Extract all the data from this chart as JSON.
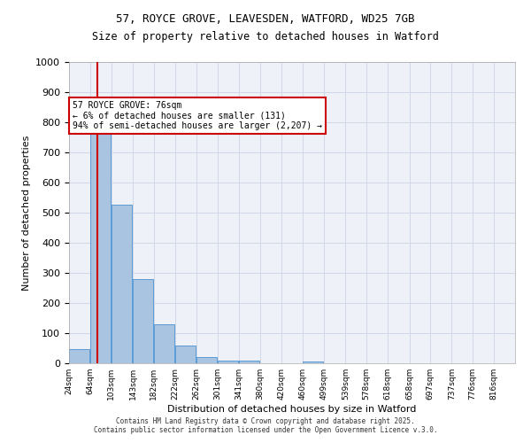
{
  "title_line1": "57, ROYCE GROVE, LEAVESDEN, WATFORD, WD25 7GB",
  "title_line2": "Size of property relative to detached houses in Watford",
  "xlabel": "Distribution of detached houses by size in Watford",
  "ylabel": "Number of detached properties",
  "bar_values": [
    46,
    812,
    525,
    278,
    128,
    60,
    22,
    10,
    10,
    0,
    0,
    7,
    0,
    0,
    0,
    0,
    0,
    0,
    0,
    0
  ],
  "bar_labels": [
    "24sqm",
    "64sqm",
    "103sqm",
    "143sqm",
    "182sqm",
    "222sqm",
    "262sqm",
    "301sqm",
    "341sqm",
    "380sqm",
    "420sqm",
    "460sqm",
    "499sqm",
    "539sqm",
    "578sqm",
    "618sqm",
    "658sqm",
    "697sqm",
    "737sqm",
    "776sqm",
    "816sqm"
  ],
  "bar_color": "#a8c4e0",
  "bar_edge_color": "#5b9bd5",
  "grid_color": "#d0d8e8",
  "background_color": "#eef2f8",
  "property_line_x": 76,
  "property_line_color": "#cc0000",
  "annotation_text": "57 ROYCE GROVE: 76sqm\n← 6% of detached houses are smaller (131)\n94% of semi-detached houses are larger (2,207) →",
  "annotation_box_color": "#cc0000",
  "ylim": [
    0,
    1000
  ],
  "yticks": [
    0,
    100,
    200,
    300,
    400,
    500,
    600,
    700,
    800,
    900,
    1000
  ],
  "footer_line1": "Contains HM Land Registry data © Crown copyright and database right 2025.",
  "footer_line2": "Contains public sector information licensed under the Open Government Licence v.3.0.",
  "bin_width": 39
}
